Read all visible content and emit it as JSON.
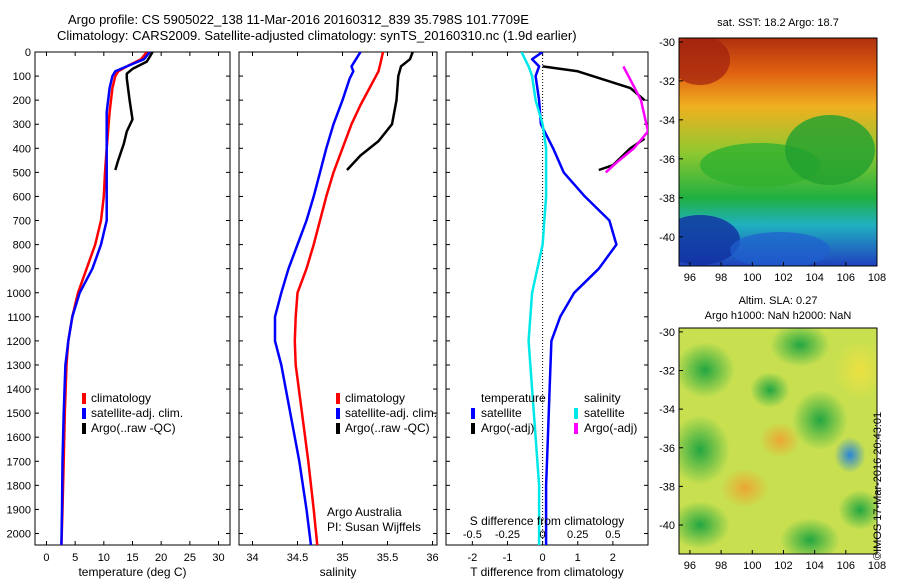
{
  "header": {
    "line1": "Argo profile: CS 5905022_138 11-Mar-2016 20160312_839 35.798S 101.7709E",
    "line2": "Climatology: CARS2009. Satellite-adjusted climatology: synTS_20160310.nc (1.9d earlier)"
  },
  "colors": {
    "climatology": "#ff0000",
    "satellite": "#0000ff",
    "argo": "#000000",
    "satellite_salinity": "#00e8e8",
    "argo_salinity": "#ff00ff"
  },
  "chart_data": [
    {
      "type": "line",
      "name": "temperature-panel",
      "xlabel": "temperature (deg C)",
      "ylabel": "",
      "xlim": [
        -2,
        32
      ],
      "ylim": [
        2050,
        0
      ],
      "xticks": [
        "0",
        "5",
        "10",
        "15",
        "20",
        "25",
        "30"
      ],
      "yticks": [
        "0",
        "100",
        "200",
        "300",
        "400",
        "500",
        "600",
        "700",
        "800",
        "900",
        "1000",
        "1100",
        "1200",
        "1300",
        "1400",
        "1500",
        "1600",
        "1700",
        "1800",
        "1900",
        "2000"
      ],
      "legend": [
        {
          "label": "climatology",
          "color": "#ff0000"
        },
        {
          "label": "satellite-adj. clim.",
          "color": "#0000ff"
        },
        {
          "label": "Argo(..raw -QC)",
          "color": "#000000"
        }
      ],
      "series": [
        {
          "color": "#ff0000",
          "points": [
            [
              17.5,
              0
            ],
            [
              16.5,
              30
            ],
            [
              14,
              60
            ],
            [
              12.5,
              80
            ],
            [
              12,
              100
            ],
            [
              11.5,
              150
            ],
            [
              11,
              250
            ],
            [
              10.5,
              400
            ],
            [
              10.2,
              500
            ],
            [
              10,
              600
            ],
            [
              9.5,
              700
            ],
            [
              8.5,
              800
            ],
            [
              7,
              900
            ],
            [
              5.5,
              1000
            ],
            [
              4.5,
              1100
            ],
            [
              3.8,
              1200
            ],
            [
              3.5,
              1300
            ],
            [
              3.2,
              1500
            ],
            [
              3,
              1700
            ],
            [
              2.8,
              1900
            ],
            [
              2.6,
              2050
            ]
          ]
        },
        {
          "color": "#0000ff",
          "points": [
            [
              18,
              0
            ],
            [
              17,
              30
            ],
            [
              14,
              60
            ],
            [
              12,
              80
            ],
            [
              11.5,
              100
            ],
            [
              11,
              150
            ],
            [
              10.5,
              250
            ],
            [
              10.5,
              350
            ],
            [
              10.5,
              450
            ],
            [
              10.5,
              600
            ],
            [
              10.5,
              700
            ],
            [
              9.5,
              800
            ],
            [
              8,
              900
            ],
            [
              5.8,
              1000
            ],
            [
              4.5,
              1100
            ],
            [
              3.8,
              1200
            ],
            [
              3.3,
              1300
            ],
            [
              3,
              1500
            ],
            [
              2.8,
              1700
            ],
            [
              2.7,
              1900
            ],
            [
              2.6,
              2050
            ]
          ]
        },
        {
          "color": "#000000",
          "points": [
            [
              18.5,
              0
            ],
            [
              18,
              20
            ],
            [
              17.5,
              40
            ],
            [
              15,
              70
            ],
            [
              14,
              90
            ],
            [
              14,
              110
            ],
            [
              14.5,
              200
            ],
            [
              15,
              280
            ],
            [
              14,
              330
            ],
            [
              13.5,
              380
            ],
            [
              12.5,
              450
            ],
            [
              12,
              490
            ]
          ]
        }
      ]
    },
    {
      "type": "line",
      "name": "salinity-panel",
      "xlabel": "salinity",
      "ylabel": "",
      "xlim": [
        33.85,
        36.05
      ],
      "ylim": [
        2050,
        0
      ],
      "xticks": [
        "34",
        "34.5",
        "35",
        "35.5",
        "36"
      ],
      "legend": [
        {
          "label": "climatology",
          "color": "#ff0000"
        },
        {
          "label": "satellite-adj. clim.",
          "color": "#0000ff"
        },
        {
          "label": "Argo(..raw -QC)",
          "color": "#000000"
        }
      ],
      "annotation": [
        "Argo Australia",
        "PI: Susan Wijffels"
      ],
      "series": [
        {
          "color": "#ff0000",
          "points": [
            [
              35.45,
              0
            ],
            [
              35.42,
              50
            ],
            [
              35.4,
              80
            ],
            [
              35.3,
              150
            ],
            [
              35.2,
              220
            ],
            [
              35.1,
              300
            ],
            [
              35,
              400
            ],
            [
              34.9,
              500
            ],
            [
              34.82,
              600
            ],
            [
              34.75,
              700
            ],
            [
              34.68,
              800
            ],
            [
              34.6,
              900
            ],
            [
              34.5,
              1000
            ],
            [
              34.48,
              1100
            ],
            [
              34.47,
              1200
            ],
            [
              34.48,
              1300
            ],
            [
              34.55,
              1500
            ],
            [
              34.62,
              1700
            ],
            [
              34.68,
              1900
            ],
            [
              34.72,
              2050
            ]
          ]
        },
        {
          "color": "#0000ff",
          "points": [
            [
              35.2,
              0
            ],
            [
              35.15,
              30
            ],
            [
              35.1,
              60
            ],
            [
              35.12,
              80
            ],
            [
              35.08,
              110
            ],
            [
              35,
              200
            ],
            [
              34.9,
              300
            ],
            [
              34.82,
              400
            ],
            [
              34.75,
              500
            ],
            [
              34.68,
              600
            ],
            [
              34.6,
              700
            ],
            [
              34.5,
              800
            ],
            [
              34.4,
              900
            ],
            [
              34.32,
              1000
            ],
            [
              34.25,
              1100
            ],
            [
              34.25,
              1200
            ],
            [
              34.32,
              1300
            ],
            [
              34.42,
              1500
            ],
            [
              34.52,
              1700
            ],
            [
              34.6,
              1900
            ],
            [
              34.65,
              2050
            ]
          ]
        },
        {
          "color": "#000000",
          "points": [
            [
              35.78,
              0
            ],
            [
              35.75,
              30
            ],
            [
              35.65,
              60
            ],
            [
              35.62,
              100
            ],
            [
              35.6,
              200
            ],
            [
              35.55,
              300
            ],
            [
              35.4,
              370
            ],
            [
              35.2,
              430
            ],
            [
              35.05,
              490
            ]
          ]
        }
      ]
    },
    {
      "type": "line",
      "name": "difference-panel",
      "xlabel": "T difference from climatology",
      "ylabel": "",
      "xlim": [
        -2.75,
        3.0
      ],
      "ylim": [
        2050,
        0
      ],
      "xticks": [
        "-2",
        "-1",
        "0",
        "1",
        "2"
      ],
      "top_xlabel": "S difference from climatology",
      "top_xticks": [
        "-0.5",
        "-0.25",
        "0",
        "0.25",
        "0.5"
      ],
      "legend": [
        {
          "heading": "temperature",
          "label": "satellite",
          "color": "#0000ff"
        },
        {
          "heading": "temperature",
          "label": "Argo(-adj)",
          "color": "#000000"
        },
        {
          "heading": "salinity",
          "label": "satellite",
          "color": "#00e8e8"
        },
        {
          "heading": "salinity",
          "label": "Argo(-adj)",
          "color": "#ff00ff"
        }
      ],
      "series": [
        {
          "color": "#0000ff",
          "points": [
            [
              0,
              0
            ],
            [
              -0.3,
              30
            ],
            [
              -0.1,
              60
            ],
            [
              -0.2,
              100
            ],
            [
              -0.1,
              200
            ],
            [
              -0.05,
              300
            ],
            [
              0.3,
              400
            ],
            [
              0.6,
              500
            ],
            [
              1.2,
              600
            ],
            [
              1.9,
              700
            ],
            [
              2.1,
              800
            ],
            [
              1.6,
              900
            ],
            [
              0.9,
              1000
            ],
            [
              0.5,
              1100
            ],
            [
              0.25,
              1200
            ],
            [
              0.2,
              1400
            ],
            [
              0.15,
              1600
            ],
            [
              0.1,
              1800
            ],
            [
              0.1,
              2000
            ],
            [
              0.1,
              2050
            ]
          ]
        },
        {
          "color": "#00e8e8",
          "points": [
            [
              -0.6,
              0
            ],
            [
              -0.5,
              30
            ],
            [
              -0.4,
              60
            ],
            [
              -0.3,
              100
            ],
            [
              -0.2,
              200
            ],
            [
              0,
              300
            ],
            [
              0.1,
              400
            ],
            [
              0.1,
              600
            ],
            [
              0,
              800
            ],
            [
              -0.3,
              1000
            ],
            [
              -0.4,
              1200
            ],
            [
              -0.3,
              1400
            ],
            [
              -0.2,
              1600
            ],
            [
              -0.1,
              1800
            ],
            [
              -0.1,
              2000
            ],
            [
              -0.1,
              2050
            ]
          ]
        },
        {
          "color": "#000000",
          "points": [
            [
              0,
              60
            ],
            [
              1,
              80
            ],
            [
              2.5,
              150
            ],
            [
              2.9,
              200
            ]
          ]
        },
        {
          "color": "#000000",
          "points": [
            [
              2.9,
              360
            ],
            [
              2.5,
              400
            ],
            [
              2,
              470
            ],
            [
              1.6,
              490
            ]
          ]
        },
        {
          "color": "#ff00ff",
          "points": [
            [
              2.3,
              60
            ],
            [
              2.8,
              200
            ],
            [
              3,
              330
            ],
            [
              2.6,
              400
            ],
            [
              2.1,
              460
            ],
            [
              1.8,
              500
            ]
          ]
        }
      ]
    },
    {
      "type": "heatmap",
      "name": "sst-map",
      "title": "sat. SST: 18.2 Argo: 18.7",
      "xticks": [
        "96",
        "98",
        "100",
        "102",
        "104",
        "106",
        "108"
      ],
      "yticks": [
        "-30",
        "-32",
        "-34",
        "-36",
        "-38",
        "-40"
      ]
    },
    {
      "type": "heatmap",
      "name": "sla-map",
      "title": [
        "Altim. SLA: 0.27",
        "Argo h1000: NaN h2000: NaN"
      ],
      "xticks": [
        "96",
        "98",
        "100",
        "102",
        "104",
        "106",
        "108"
      ],
      "yticks": [
        "-30",
        "-32",
        "-34",
        "-36",
        "-38",
        "-40"
      ]
    }
  ],
  "copyright": "©IMOS 17-Mar-2016 20:43:01"
}
